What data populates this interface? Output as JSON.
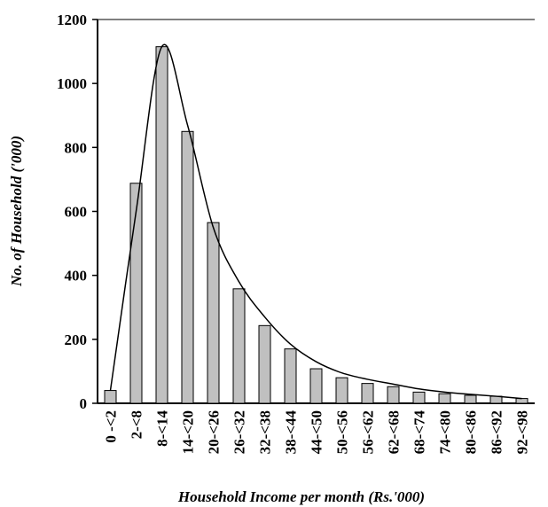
{
  "chart_data": {
    "type": "bar",
    "title": "",
    "xlabel": "Household Income per month (Rs.'000)",
    "ylabel": "No. of Household ('000)",
    "ylim": [
      0,
      1200
    ],
    "yticks": [
      0,
      200,
      400,
      600,
      800,
      1000,
      1200
    ],
    "grid": false,
    "categories": [
      "0 -<2",
      "2-<8",
      "8-<14",
      "14-<20",
      "20-<26",
      "26-<32",
      "32-<38",
      "38-<44",
      "44-<50",
      "50-<56",
      "56-<62",
      "62-<68",
      "68-<74",
      "74-<80",
      "80-<86",
      "86-<92",
      "92-<98"
    ],
    "values": [
      40,
      688,
      1115,
      850,
      565,
      358,
      243,
      170,
      108,
      80,
      62,
      52,
      35,
      30,
      25,
      22,
      15
    ],
    "curve": [
      40,
      600,
      1115,
      870,
      550,
      380,
      270,
      185,
      130,
      95,
      75,
      60,
      45,
      35,
      28,
      22,
      15
    ],
    "colors": {
      "bar_fill": "#c0c0c0",
      "bar_stroke": "#000000",
      "curve": "#000000",
      "frame": "#808080"
    }
  }
}
